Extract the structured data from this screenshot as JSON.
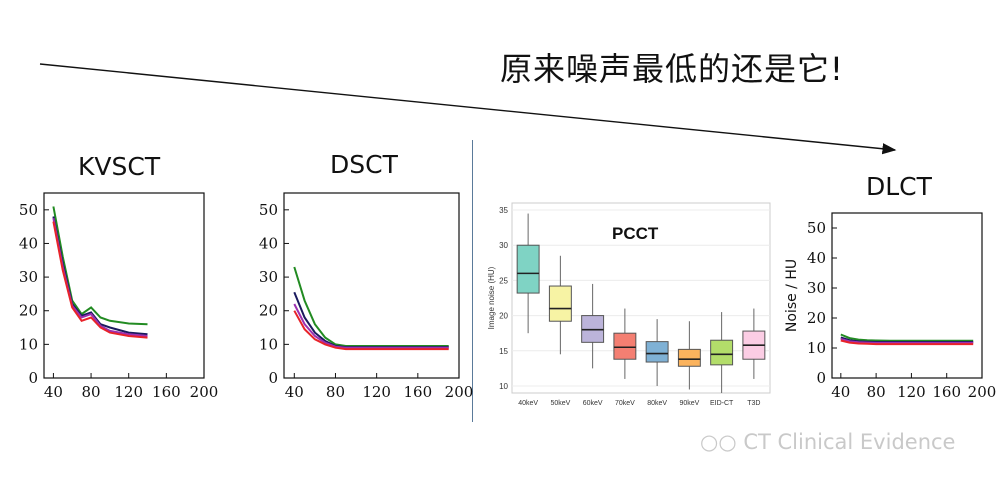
{
  "headline": "原来噪声最低的还是它!",
  "watermark": "CT Clinical Evidence",
  "chart_data": [
    {
      "id": "kvsct",
      "type": "line",
      "title": "KVSCT",
      "xlim": [
        30,
        200
      ],
      "ylim": [
        0,
        55
      ],
      "xticks": [
        40,
        80,
        120,
        160,
        200
      ],
      "yticks": [
        0,
        10,
        20,
        30,
        40,
        50
      ],
      "x": [
        40,
        50,
        60,
        70,
        80,
        90,
        100,
        120,
        140
      ],
      "series": [
        {
          "color": "#228b22",
          "values": [
            51,
            36,
            23,
            19,
            21,
            18,
            17,
            16.2,
            16
          ]
        },
        {
          "color": "#1a1a5e",
          "values": [
            48,
            34,
            22,
            18.5,
            19.5,
            16,
            15,
            13.5,
            13
          ]
        },
        {
          "color": "#9b30b0",
          "values": [
            47.5,
            33,
            21.5,
            18,
            19,
            15.5,
            14,
            13,
            12.5
          ]
        },
        {
          "color": "#e8232a",
          "values": [
            46.5,
            32,
            21,
            17,
            18,
            15,
            13.5,
            12.5,
            12
          ]
        }
      ]
    },
    {
      "id": "dsct",
      "type": "line",
      "title": "DSCT",
      "xlim": [
        30,
        200
      ],
      "ylim": [
        0,
        55
      ],
      "xticks": [
        40,
        80,
        120,
        160,
        200
      ],
      "yticks": [
        0,
        10,
        20,
        30,
        40,
        50
      ],
      "x": [
        40,
        50,
        60,
        70,
        80,
        90,
        100,
        120,
        140,
        160,
        190
      ],
      "series": [
        {
          "color": "#228b22",
          "values": [
            33,
            23,
            16,
            12,
            10,
            9.5,
            9.5,
            9.5,
            9.5,
            9.5,
            9.5
          ]
        },
        {
          "color": "#1a1a5e",
          "values": [
            25.5,
            18,
            13.5,
            11,
            9.5,
            9.2,
            9.2,
            9.2,
            9.2,
            9.2,
            9.2
          ]
        },
        {
          "color": "#9b30b0",
          "values": [
            22,
            16,
            12.5,
            10.5,
            9.3,
            9,
            9,
            9,
            9,
            9,
            9
          ]
        },
        {
          "color": "#e8232a",
          "values": [
            20,
            14.5,
            11.5,
            10,
            9,
            8.6,
            8.6,
            8.6,
            8.6,
            8.6,
            8.6
          ]
        }
      ]
    },
    {
      "id": "pcct",
      "type": "box",
      "title": "PCCT",
      "ylabel": "Image noise (HU)",
      "ylim": [
        9,
        36
      ],
      "yticks": [
        10,
        15,
        20,
        25,
        30,
        35
      ],
      "categories": [
        "40keV",
        "50keV",
        "60keV",
        "70keV",
        "80keV",
        "90keV",
        "EID-CT",
        "T3D"
      ],
      "boxes": [
        {
          "min": 17.5,
          "q1": 23.2,
          "median": 26,
          "q3": 30,
          "max": 34.5,
          "color": "#7fd3c4"
        },
        {
          "min": 14.5,
          "q1": 19.2,
          "median": 21,
          "q3": 24.2,
          "max": 28.5,
          "color": "#f7f3a4"
        },
        {
          "min": 12.5,
          "q1": 16.2,
          "median": 18,
          "q3": 20,
          "max": 24.5,
          "color": "#bcb4da"
        },
        {
          "min": 11,
          "q1": 13.8,
          "median": 15.5,
          "q3": 17.5,
          "max": 21,
          "color": "#f47f72"
        },
        {
          "min": 10,
          "q1": 13.4,
          "median": 14.6,
          "q3": 16.3,
          "max": 19.5,
          "color": "#7fb1d5"
        },
        {
          "min": 9.5,
          "q1": 12.8,
          "median": 13.8,
          "q3": 15.2,
          "max": 19.2,
          "color": "#fbb35d"
        },
        {
          "min": 9,
          "q1": 13,
          "median": 14.5,
          "q3": 16.5,
          "max": 20.5,
          "color": "#b3dd6a"
        },
        {
          "min": 11,
          "q1": 13.8,
          "median": 15.8,
          "q3": 17.8,
          "max": 21,
          "color": "#fbcde4"
        }
      ]
    },
    {
      "id": "dlct",
      "type": "line",
      "title": "DLCT",
      "ylabel": "Noise / HU",
      "xlim": [
        30,
        200
      ],
      "ylim": [
        0,
        55
      ],
      "xticks": [
        40,
        80,
        120,
        160,
        200
      ],
      "yticks": [
        0,
        10,
        20,
        30,
        40,
        50
      ],
      "x": [
        40,
        50,
        60,
        70,
        80,
        100,
        120,
        140,
        160,
        190
      ],
      "series": [
        {
          "color": "#228b22",
          "values": [
            14.5,
            13.3,
            12.8,
            12.6,
            12.5,
            12.4,
            12.4,
            12.4,
            12.4,
            12.4
          ]
        },
        {
          "color": "#1a1a5e",
          "values": [
            13.5,
            12.6,
            12.2,
            12.1,
            12,
            12,
            12,
            12,
            12,
            12
          ]
        },
        {
          "color": "#9b30b0",
          "values": [
            13,
            12.2,
            11.9,
            11.8,
            11.7,
            11.7,
            11.7,
            11.7,
            11.7,
            11.7
          ]
        },
        {
          "color": "#e8232a",
          "values": [
            12.5,
            11.8,
            11.5,
            11.4,
            11.3,
            11.3,
            11.3,
            11.3,
            11.3,
            11.3
          ]
        }
      ]
    }
  ]
}
